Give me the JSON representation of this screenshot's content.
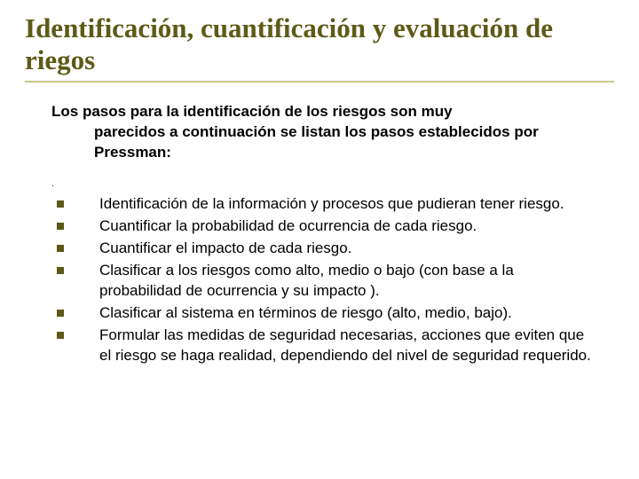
{
  "colors": {
    "title": "#5d5a17",
    "rule": "#c9c68a",
    "bullet": "#5d5a17",
    "body_text": "#000000",
    "background": "#ffffff"
  },
  "typography": {
    "title_family": "Times New Roman",
    "title_size_pt": 31,
    "title_weight": "bold",
    "body_family": "Arial",
    "body_size_pt": 17,
    "intro_weight": "bold",
    "item_weight": "normal"
  },
  "title": "Identificación, cuantificación y evaluación de riegos",
  "intro_first": "Los pasos para la identificación de los riesgos son muy",
  "intro_rest": "parecidos a continuación se listan los pasos establecidos por Pressman:",
  "dot": ".",
  "items": [
    "Identificación de la información y  procesos que pudieran tener riesgo.",
    "Cuantificar la probabilidad de ocurrencia de cada riesgo.",
    "Cuantificar el impacto de cada riesgo.",
    "Clasificar a los riesgos como alto, medio o bajo (con base a la probabilidad de ocurrencia y su impacto ).",
    "Clasificar al sistema  en términos de riesgo (alto, medio, bajo).",
    "Formular las medidas de seguridad  necesarias, acciones que eviten  que el riesgo se  haga realidad, dependiendo del nivel de seguridad requerido."
  ]
}
